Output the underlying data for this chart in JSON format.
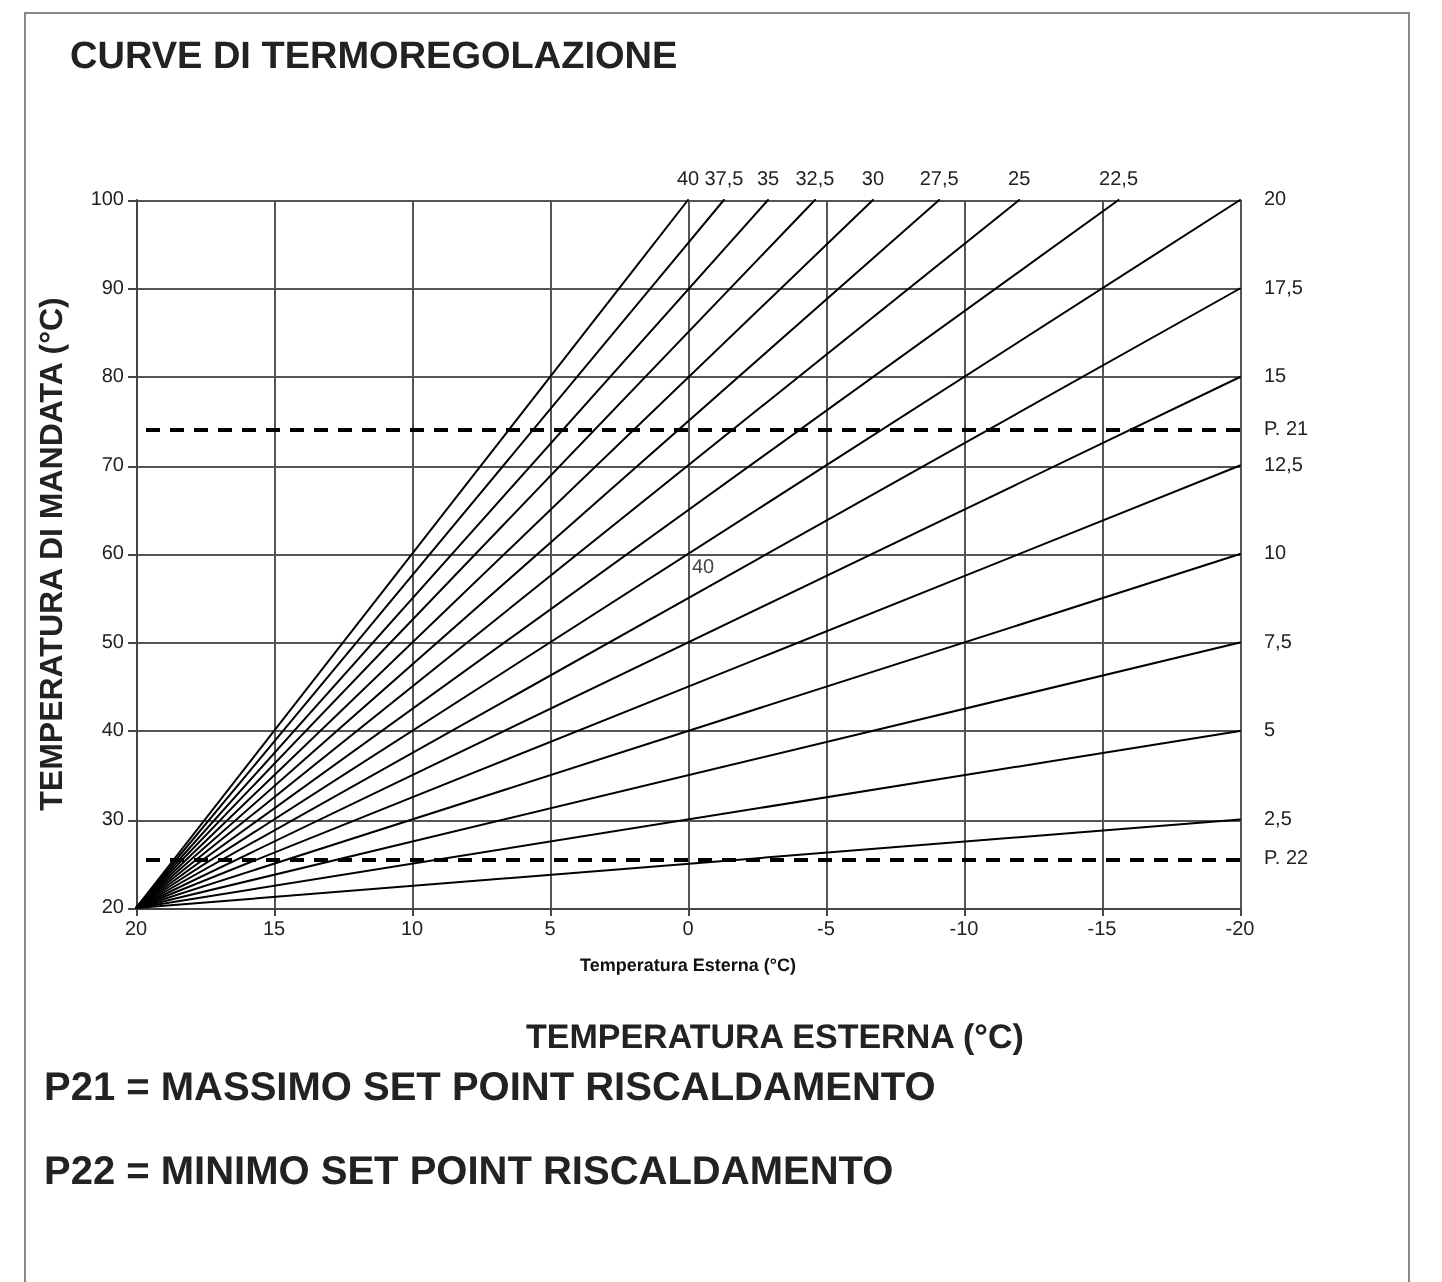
{
  "chart_data": {
    "type": "line",
    "title": "CURVE DI TERMOREGOLAZIONE",
    "xlabel": "Temperatura Esterna (°C)",
    "ylabel": "TEMPERATURA DI MANDATA (°C)",
    "annotations": [
      "TEMPERATURA ESTERNA (°C)",
      "P21 = MASSIMO SET POINT RISCALDAMENTO",
      "P22 = MINIMO SET POINT RISCALDAMENTO",
      "40"
    ],
    "xlim": [
      20,
      -20
    ],
    "xticks": [
      20,
      15,
      10,
      5,
      0,
      -5,
      -10,
      -15,
      -20
    ],
    "ylim": [
      20,
      100
    ],
    "yticks": [
      20,
      30,
      40,
      50,
      60,
      70,
      80,
      90,
      100
    ],
    "grid": true,
    "marker": "none",
    "ref_lines": [
      {
        "axis": "y",
        "value": 74,
        "label": "P. 21",
        "color": "#000000",
        "line_style": "dashed"
      },
      {
        "axis": "y",
        "value": 25.5,
        "label": "P. 22",
        "color": "#000000",
        "line_style": "dashed"
      }
    ],
    "series": [
      {
        "name": "40",
        "color": "#000000",
        "x": [
          20,
          0
        ],
        "values": [
          20,
          100
        ]
      },
      {
        "name": "37,5",
        "color": "#000000",
        "x": [
          20,
          -1.3
        ],
        "values": [
          20,
          100
        ]
      },
      {
        "name": "35",
        "color": "#000000",
        "x": [
          20,
          -2.9
        ],
        "values": [
          20,
          100
        ]
      },
      {
        "name": "32,5",
        "color": "#000000",
        "x": [
          20,
          -4.6
        ],
        "values": [
          20,
          100
        ]
      },
      {
        "name": "30",
        "color": "#000000",
        "x": [
          20,
          -6.7
        ],
        "values": [
          20,
          100
        ]
      },
      {
        "name": "27,5",
        "color": "#000000",
        "x": [
          20,
          -9.1
        ],
        "values": [
          20,
          100
        ]
      },
      {
        "name": "25",
        "color": "#000000",
        "x": [
          20,
          -12
        ],
        "values": [
          20,
          100
        ]
      },
      {
        "name": "22,5",
        "color": "#000000",
        "x": [
          20,
          -15.6
        ],
        "values": [
          20,
          100
        ]
      },
      {
        "name": "20",
        "color": "#000000",
        "x": [
          20,
          -20
        ],
        "values": [
          20,
          100
        ]
      },
      {
        "name": "17,5",
        "color": "#000000",
        "x": [
          20,
          -20
        ],
        "values": [
          20,
          90
        ]
      },
      {
        "name": "15",
        "color": "#000000",
        "x": [
          20,
          -20
        ],
        "values": [
          20,
          80
        ]
      },
      {
        "name": "12,5",
        "color": "#000000",
        "x": [
          20,
          -20
        ],
        "values": [
          20,
          70
        ]
      },
      {
        "name": "10",
        "color": "#000000",
        "x": [
          20,
          -20
        ],
        "values": [
          20,
          60
        ]
      },
      {
        "name": "7,5",
        "color": "#000000",
        "x": [
          20,
          -20
        ],
        "values": [
          20,
          50
        ]
      },
      {
        "name": "5",
        "color": "#000000",
        "x": [
          20,
          -20
        ],
        "values": [
          20,
          40
        ]
      },
      {
        "name": "2,5",
        "color": "#000000",
        "x": [
          20,
          -20
        ],
        "values": [
          20,
          30
        ]
      }
    ]
  }
}
